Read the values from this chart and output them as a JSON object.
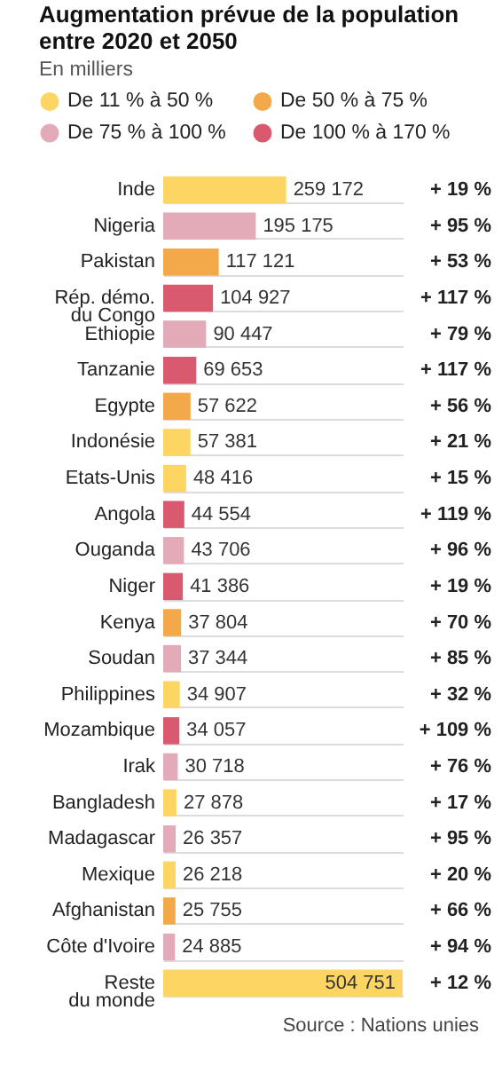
{
  "chart_data": {
    "type": "bar",
    "orientation": "horizontal",
    "title": "Augmentation prévue de la population entre 2020 et 2050",
    "subtitle": "En milliers",
    "categories": [
      "Inde",
      "Nigeria",
      "Pakistan",
      "Rép. démo.\ndu Congo",
      "Ethiopie",
      "Tanzanie",
      "Egypte",
      "Indonésie",
      "Etats-Unis",
      "Angola",
      "Ouganda",
      "Niger",
      "Kenya",
      "Soudan",
      "Philippines",
      "Mozambique",
      "Irak",
      "Bangladesh",
      "Madagascar",
      "Mexique",
      "Afghanistan",
      "Côte d'Ivoire",
      "Reste\ndu monde"
    ],
    "series": [
      {
        "name": "De 11 % à 50 %",
        "color": "#fcd562",
        "values": [
          259172,
          null,
          null,
          null,
          null,
          null,
          null,
          57381,
          48416,
          null,
          null,
          null,
          null,
          null,
          34907,
          null,
          null,
          27878,
          null,
          26218,
          null,
          null,
          504751
        ],
        "value_labels": [
          "259 172",
          null,
          null,
          null,
          null,
          null,
          null,
          "57 381",
          "48 416",
          null,
          null,
          null,
          null,
          null,
          "34 907",
          null,
          null,
          "27 878",
          null,
          "26 218",
          null,
          null,
          "504 751"
        ]
      },
      {
        "name": "De 50 % à 75 %",
        "color": "#f3a84a",
        "values": [
          null,
          null,
          117121,
          null,
          null,
          null,
          57622,
          null,
          null,
          null,
          null,
          null,
          37804,
          null,
          null,
          null,
          null,
          null,
          null,
          null,
          25755,
          null,
          null
        ],
        "value_labels": [
          null,
          null,
          "117 121",
          null,
          null,
          null,
          "57 622",
          null,
          null,
          null,
          null,
          null,
          "37 804",
          null,
          null,
          null,
          null,
          null,
          null,
          null,
          "25 755",
          null,
          null
        ]
      },
      {
        "name": "De 75 % à 100 %",
        "color": "#e3aab8",
        "values": [
          null,
          195175,
          null,
          null,
          90447,
          null,
          null,
          null,
          null,
          null,
          43706,
          null,
          null,
          37344,
          null,
          null,
          30718,
          null,
          26357,
          null,
          null,
          24885,
          null
        ],
        "value_labels": [
          null,
          "195 175",
          null,
          null,
          "90 447",
          null,
          null,
          null,
          null,
          null,
          "43 706",
          null,
          null,
          "37 344",
          null,
          null,
          "30 718",
          null,
          "26 357",
          null,
          null,
          "24 885",
          null
        ]
      },
      {
        "name": "De 100 % à 170 %",
        "color": "#d95a6e",
        "values": [
          null,
          null,
          null,
          104927,
          null,
          69653,
          null,
          null,
          null,
          44554,
          null,
          41386,
          null,
          null,
          null,
          34057,
          null,
          null,
          null,
          null,
          null,
          null,
          null
        ],
        "value_labels": [
          null,
          null,
          null,
          "104 927",
          null,
          "69 653",
          null,
          null,
          null,
          "44 554",
          null,
          "41 386",
          null,
          null,
          null,
          "34 057",
          null,
          null,
          null,
          null,
          null,
          null,
          null
        ]
      }
    ],
    "legend": "top",
    "grid": "y",
    "annotations": [
      "+ 19 %",
      "+ 95 %",
      "+ 53 %",
      "+ 117 %",
      "+ 79 %",
      "+ 117 %",
      "+ 56 %",
      "+ 21 %",
      "+ 15 %",
      "+ 119 %",
      "+ 96 %",
      "+ 19 %",
      "+ 70 %",
      "+ 85 %",
      "+ 32 %",
      "+ 109 %",
      "+ 76 %",
      "+ 17 %",
      "+ 95 %",
      "+ 20 %",
      "+ 66 %",
      "+ 94 %",
      "+ 12 %",
      "Source : Nations unies"
    ]
  }
}
